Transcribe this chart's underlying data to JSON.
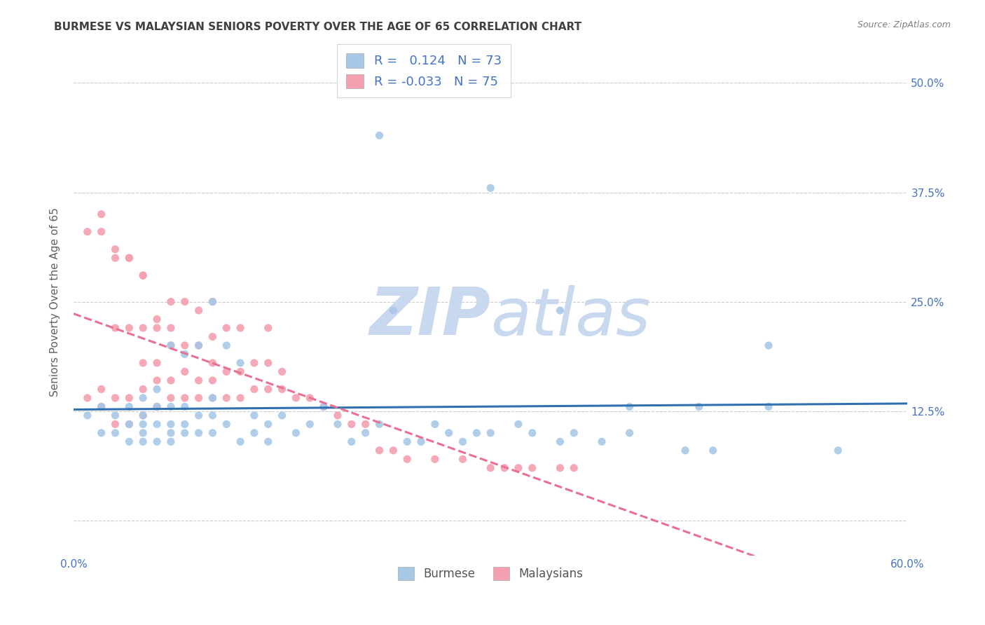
{
  "title": "BURMESE VS MALAYSIAN SENIORS POVERTY OVER THE AGE OF 65 CORRELATION CHART",
  "source": "Source: ZipAtlas.com",
  "ylabel": "Seniors Poverty Over the Age of 65",
  "xlim": [
    0.0,
    0.6
  ],
  "ylim": [
    -0.04,
    0.54
  ],
  "xticks": [
    0.0,
    0.1,
    0.2,
    0.3,
    0.4,
    0.5,
    0.6
  ],
  "yticks": [
    0.0,
    0.125,
    0.25,
    0.375,
    0.5
  ],
  "xtick_labels": [
    "0.0%",
    "",
    "",
    "",
    "",
    "",
    "60.0%"
  ],
  "ytick_labels": [
    "",
    "12.5%",
    "25.0%",
    "37.5%",
    "50.0%"
  ],
  "burmese_R": 0.124,
  "burmese_N": 73,
  "malaysian_R": -0.033,
  "malaysian_N": 75,
  "burmese_color": "#a8c8e8",
  "malaysian_color": "#f4a0b0",
  "burmese_line_color": "#3070b0",
  "malaysian_line_color": "#e87090",
  "watermark_color": "#c8d8ee",
  "grid_color": "#cccccc",
  "tick_color": "#4472c4",
  "title_color": "#404040",
  "source_color": "#808080",
  "ylabel_color": "#606060",
  "burmese_x": [
    0.01,
    0.02,
    0.02,
    0.03,
    0.03,
    0.04,
    0.04,
    0.04,
    0.05,
    0.05,
    0.05,
    0.05,
    0.05,
    0.06,
    0.06,
    0.06,
    0.06,
    0.07,
    0.07,
    0.07,
    0.07,
    0.07,
    0.08,
    0.08,
    0.08,
    0.08,
    0.09,
    0.09,
    0.09,
    0.1,
    0.1,
    0.1,
    0.1,
    0.11,
    0.11,
    0.12,
    0.12,
    0.13,
    0.13,
    0.14,
    0.14,
    0.15,
    0.16,
    0.17,
    0.18,
    0.19,
    0.2,
    0.21,
    0.22,
    0.23,
    0.24,
    0.25,
    0.26,
    0.27,
    0.28,
    0.29,
    0.3,
    0.32,
    0.33,
    0.35,
    0.36,
    0.38,
    0.4,
    0.44,
    0.46,
    0.5,
    0.55,
    0.22,
    0.3,
    0.35,
    0.4,
    0.45,
    0.5
  ],
  "burmese_y": [
    0.12,
    0.1,
    0.13,
    0.1,
    0.12,
    0.09,
    0.11,
    0.13,
    0.09,
    0.1,
    0.11,
    0.12,
    0.14,
    0.09,
    0.11,
    0.13,
    0.15,
    0.09,
    0.1,
    0.11,
    0.13,
    0.2,
    0.1,
    0.11,
    0.13,
    0.19,
    0.1,
    0.12,
    0.2,
    0.1,
    0.12,
    0.14,
    0.25,
    0.11,
    0.2,
    0.09,
    0.18,
    0.1,
    0.12,
    0.09,
    0.11,
    0.12,
    0.1,
    0.11,
    0.13,
    0.11,
    0.09,
    0.1,
    0.11,
    0.24,
    0.09,
    0.09,
    0.11,
    0.1,
    0.09,
    0.1,
    0.1,
    0.11,
    0.1,
    0.09,
    0.1,
    0.09,
    0.1,
    0.08,
    0.08,
    0.2,
    0.08,
    0.44,
    0.38,
    0.24,
    0.13,
    0.13,
    0.13
  ],
  "malaysian_x": [
    0.01,
    0.01,
    0.02,
    0.02,
    0.02,
    0.03,
    0.03,
    0.03,
    0.03,
    0.04,
    0.04,
    0.04,
    0.04,
    0.05,
    0.05,
    0.05,
    0.05,
    0.05,
    0.06,
    0.06,
    0.06,
    0.06,
    0.07,
    0.07,
    0.07,
    0.07,
    0.07,
    0.08,
    0.08,
    0.08,
    0.08,
    0.09,
    0.09,
    0.09,
    0.09,
    0.1,
    0.1,
    0.1,
    0.1,
    0.1,
    0.11,
    0.11,
    0.11,
    0.12,
    0.12,
    0.12,
    0.13,
    0.13,
    0.14,
    0.14,
    0.14,
    0.15,
    0.15,
    0.16,
    0.17,
    0.18,
    0.19,
    0.2,
    0.21,
    0.22,
    0.23,
    0.24,
    0.26,
    0.28,
    0.3,
    0.31,
    0.32,
    0.33,
    0.35,
    0.36,
    0.02,
    0.03,
    0.04,
    0.05,
    0.06
  ],
  "malaysian_y": [
    0.14,
    0.33,
    0.13,
    0.15,
    0.33,
    0.11,
    0.14,
    0.22,
    0.3,
    0.11,
    0.14,
    0.22,
    0.3,
    0.12,
    0.15,
    0.18,
    0.22,
    0.28,
    0.13,
    0.16,
    0.18,
    0.23,
    0.14,
    0.16,
    0.2,
    0.22,
    0.25,
    0.14,
    0.17,
    0.2,
    0.25,
    0.14,
    0.16,
    0.2,
    0.24,
    0.14,
    0.16,
    0.18,
    0.21,
    0.25,
    0.14,
    0.17,
    0.22,
    0.14,
    0.17,
    0.22,
    0.15,
    0.18,
    0.15,
    0.18,
    0.22,
    0.15,
    0.17,
    0.14,
    0.14,
    0.13,
    0.12,
    0.11,
    0.11,
    0.08,
    0.08,
    0.07,
    0.07,
    0.07,
    0.06,
    0.06,
    0.06,
    0.06,
    0.06,
    0.06,
    0.35,
    0.31,
    0.3,
    0.28,
    0.22
  ]
}
